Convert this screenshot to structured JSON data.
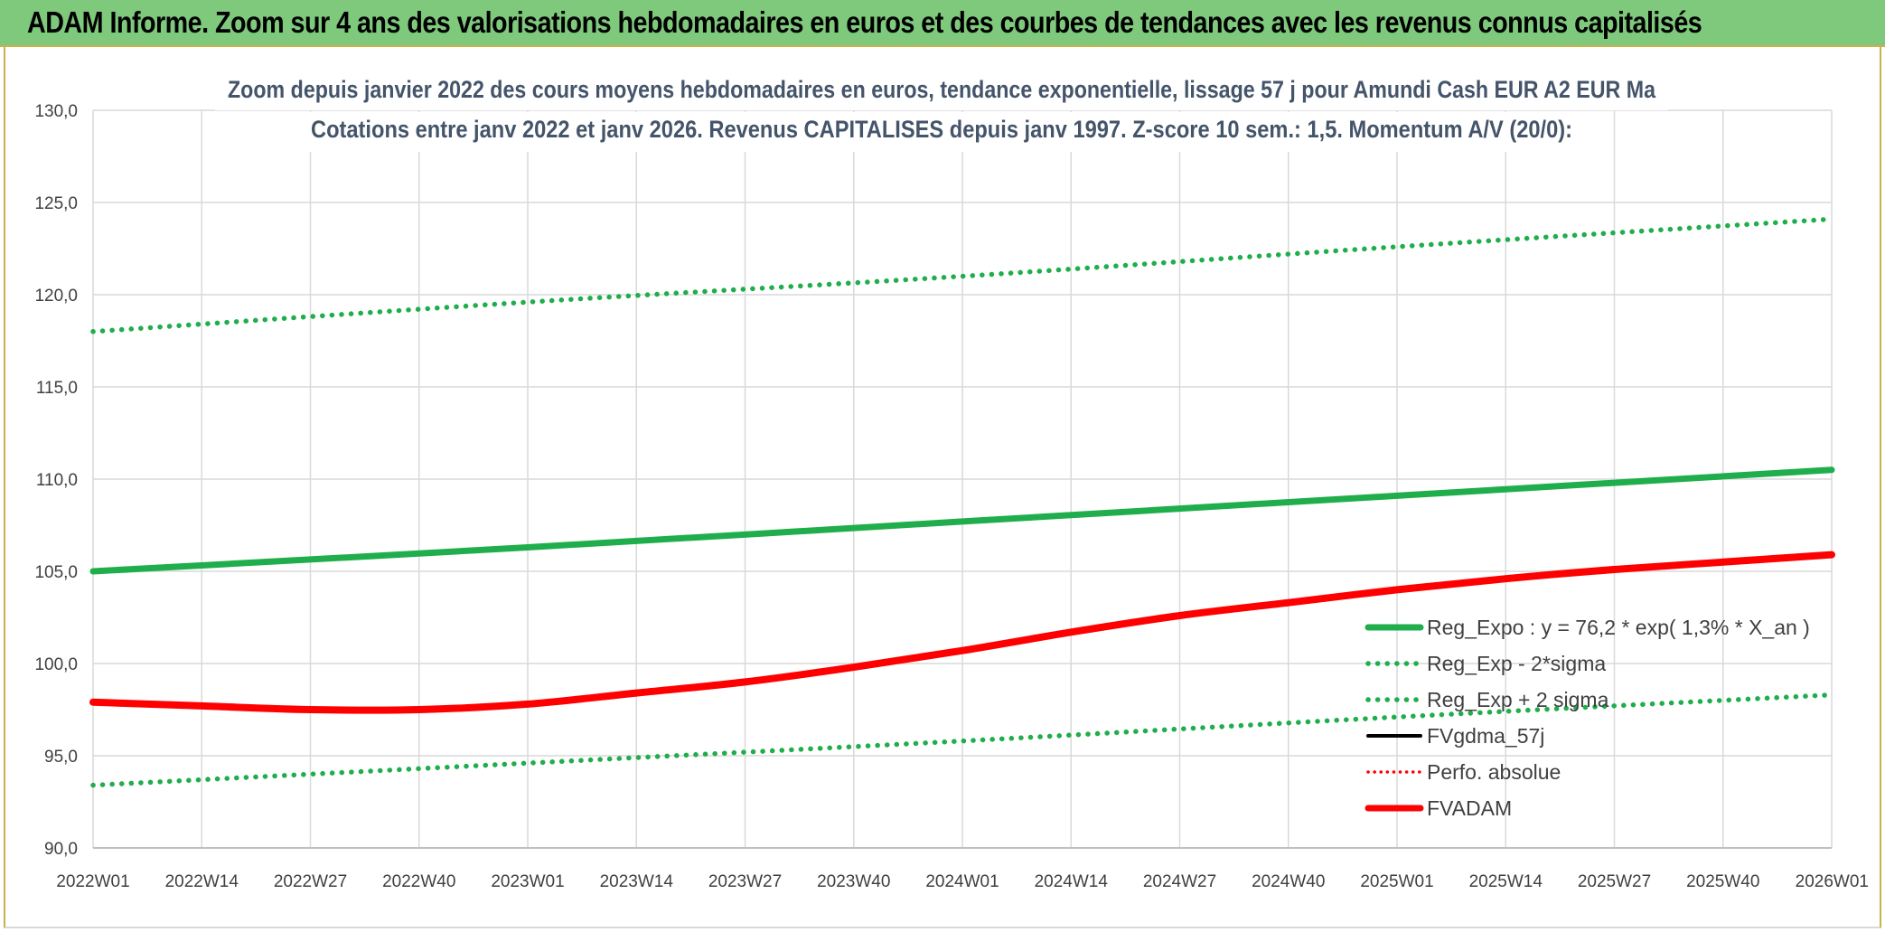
{
  "banner": {
    "title": "ADAM Informe. Zoom sur 4 ans des valorisations hebdomadaires en euros et des courbes de tendances avec les revenus connus capitalisés"
  },
  "colors": {
    "banner_bg": "#7ec97c",
    "reg_expo": "#1fae4b",
    "sigma": "#1fae4b",
    "fvgdma": "#000000",
    "perfo": "#ff0000",
    "fvadam": "#ff0000",
    "title": "#44546a"
  },
  "chart_data": {
    "type": "line",
    "title_line1": "Zoom depuis janvier 2022 des cours moyens hebdomadaires en euros, tendance exponentielle, lissage 57 j pour Amundi Cash EUR A2 EUR Ma",
    "title_line2": "Cotations entre janv 2022 et janv 2026. Revenus CAPITALISES depuis janv 1997. Z-score 10 sem.: 1,5. Momentum A/V (20/0):",
    "xlabel": "",
    "ylabel": "",
    "ylim": [
      90,
      130
    ],
    "yticks": [
      "90,0",
      "95,0",
      "100,0",
      "105,0",
      "110,0",
      "115,0",
      "120,0",
      "125,0",
      "130,0"
    ],
    "x_range": [
      0,
      208
    ],
    "xticks": [
      "2022W01",
      "2022W14",
      "2022W27",
      "2022W40",
      "2023W01",
      "2023W14",
      "2023W27",
      "2023W40",
      "2024W01",
      "2024W14",
      "2024W27",
      "2024W40",
      "2025W01",
      "2025W14",
      "2025W27",
      "2025W40",
      "2026W01"
    ],
    "legend_position": "bottom-right",
    "grid": true,
    "series": [
      {
        "name": "Reg_Expo : y = 76,2 * exp( 1,3% *  X_an )",
        "style": "solid-thick",
        "x": [
          0,
          52,
          104,
          156,
          208
        ],
        "y": [
          105.0,
          106.3,
          107.7,
          109.1,
          110.5
        ]
      },
      {
        "name": "Reg_Exp - 2*sigma",
        "style": "dotted",
        "x": [
          0,
          52,
          104,
          156,
          208
        ],
        "y": [
          93.4,
          94.6,
          95.8,
          97.1,
          98.3
        ]
      },
      {
        "name": "Reg_Exp + 2 sigma",
        "style": "dotted",
        "x": [
          0,
          52,
          104,
          156,
          208
        ],
        "y": [
          118.0,
          119.6,
          121.0,
          122.6,
          124.1
        ]
      },
      {
        "name": "FVgdma_57j",
        "style": "solid",
        "x": [
          0,
          13,
          26,
          39,
          52,
          65,
          78,
          91,
          104,
          117,
          130,
          143,
          156,
          169,
          182,
          195,
          208
        ],
        "y": [
          97.9,
          97.7,
          97.5,
          97.5,
          97.8,
          98.4,
          99.0,
          99.8,
          100.7,
          101.7,
          102.6,
          103.3,
          104.0,
          104.6,
          105.1,
          105.5,
          105.9
        ]
      },
      {
        "name": "Perfo. absolue",
        "style": "dotted",
        "x": [],
        "y": []
      },
      {
        "name": "FVADAM",
        "style": "solid-thick",
        "x": [
          0,
          13,
          26,
          39,
          52,
          65,
          78,
          91,
          104,
          117,
          130,
          143,
          156,
          169,
          182,
          195,
          208
        ],
        "y": [
          97.9,
          97.7,
          97.5,
          97.5,
          97.8,
          98.4,
          99.0,
          99.8,
          100.7,
          101.7,
          102.6,
          103.3,
          104.0,
          104.6,
          105.1,
          105.5,
          105.9
        ]
      }
    ]
  }
}
